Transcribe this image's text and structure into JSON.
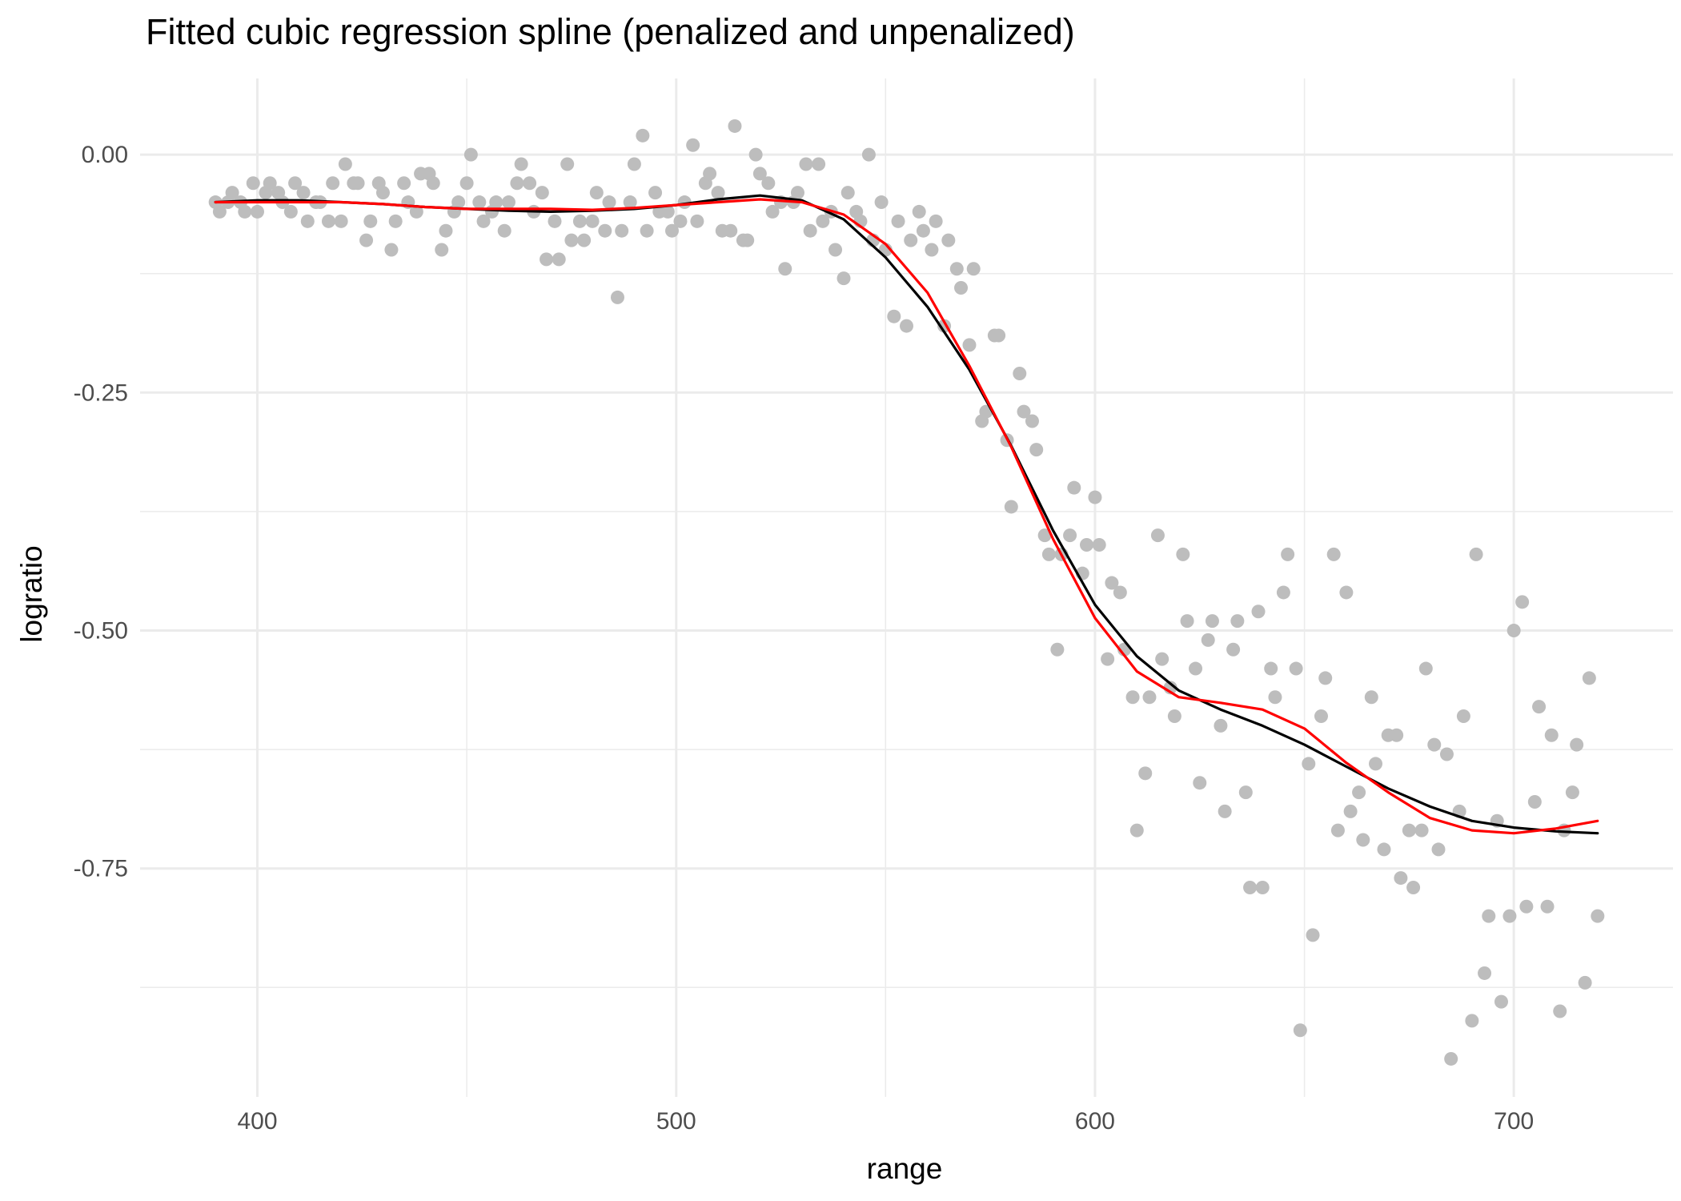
{
  "chart_data": {
    "type": "scatter",
    "title": "Fitted cubic regression spline (penalized and unpenalized)",
    "xlabel": "range",
    "ylabel": "logratio",
    "xlim": [
      372,
      738
    ],
    "ylim": [
      -0.99,
      0.08
    ],
    "x_ticks": [
      400,
      500,
      600,
      700
    ],
    "x_tick_labels": [
      "400",
      "500",
      "600",
      "700"
    ],
    "y_ticks": [
      0,
      -0.25,
      -0.5,
      -0.75
    ],
    "y_tick_labels": [
      "0.00",
      "-0.25",
      "-0.50",
      "-0.75"
    ],
    "x_minor": [
      350,
      450,
      550,
      650,
      750
    ],
    "y_minor": [
      0.125,
      -0.125,
      -0.375,
      -0.625,
      -0.875
    ],
    "grid": true,
    "colors": {
      "points": "#bdbdbd",
      "grid": "#ebebeb",
      "penalized": "#000000",
      "unpenalized": "#ff0000"
    },
    "series": [
      {
        "kind": "points",
        "x": [
          390,
          391,
          393,
          394,
          396,
          397,
          399,
          400,
          402,
          403,
          405,
          406,
          408,
          409,
          411,
          412,
          414,
          415,
          417,
          418,
          420,
          421,
          423,
          424,
          426,
          427,
          429,
          430,
          432,
          433,
          435,
          436,
          438,
          439,
          441,
          442,
          444,
          445,
          447,
          448,
          450,
          451,
          453,
          454,
          456,
          457,
          459,
          460,
          462,
          463,
          465,
          466,
          468,
          469,
          471,
          472,
          474,
          475,
          477,
          478,
          480,
          481,
          483,
          484,
          486,
          487,
          489,
          490,
          492,
          493,
          495,
          496,
          498,
          499,
          501,
          502,
          504,
          505,
          507,
          508,
          510,
          511,
          513,
          514,
          516,
          517,
          519,
          520,
          522,
          523,
          525,
          526,
          528,
          529,
          531,
          532,
          534,
          535,
          537,
          538,
          540,
          541,
          543,
          544,
          546,
          547,
          549,
          550,
          552,
          553,
          555,
          556,
          558,
          559,
          561,
          562,
          564,
          565,
          567,
          568,
          570,
          571,
          573,
          574,
          576,
          577,
          579,
          580,
          582,
          583,
          585,
          586,
          588,
          589,
          591,
          592,
          594,
          595,
          597,
          598,
          600,
          601,
          603,
          604,
          606,
          607,
          609,
          610,
          612,
          613,
          615,
          616,
          618,
          619,
          621,
          622,
          624,
          625,
          627,
          628,
          630,
          631,
          633,
          634,
          636,
          637,
          639,
          640,
          642,
          643,
          645,
          646,
          648,
          649,
          651,
          652,
          654,
          655,
          657,
          658,
          660,
          661,
          663,
          664,
          666,
          667,
          669,
          670,
          672,
          673,
          675,
          676,
          678,
          679,
          681,
          682,
          684,
          685,
          687,
          688,
          690,
          691,
          693,
          694,
          696,
          697,
          699,
          700,
          702,
          703,
          705,
          706,
          708,
          709,
          711,
          712,
          714,
          715,
          717,
          718,
          720
        ],
        "y": [
          -0.05,
          -0.06,
          -0.05,
          -0.04,
          -0.05,
          -0.06,
          -0.03,
          -0.06,
          -0.04,
          -0.03,
          -0.04,
          -0.05,
          -0.06,
          -0.03,
          -0.04,
          -0.07,
          -0.05,
          -0.05,
          -0.07,
          -0.03,
          -0.07,
          -0.01,
          -0.03,
          -0.03,
          -0.09,
          -0.07,
          -0.03,
          -0.04,
          -0.1,
          -0.07,
          -0.03,
          -0.05,
          -0.06,
          -0.02,
          -0.02,
          -0.03,
          -0.1,
          -0.08,
          -0.06,
          -0.05,
          -0.03,
          0,
          -0.05,
          -0.07,
          -0.06,
          -0.05,
          -0.08,
          -0.05,
          -0.03,
          -0.01,
          -0.03,
          -0.06,
          -0.04,
          -0.11,
          -0.07,
          -0.11,
          -0.01,
          -0.09,
          -0.07,
          -0.09,
          -0.07,
          -0.04,
          -0.08,
          -0.05,
          -0.15,
          -0.08,
          -0.05,
          -0.01,
          0.02,
          -0.08,
          -0.04,
          -0.06,
          -0.06,
          -0.08,
          -0.07,
          -0.05,
          0.01,
          -0.07,
          -0.03,
          -0.02,
          -0.04,
          -0.08,
          -0.08,
          0.03,
          -0.09,
          -0.09,
          0,
          -0.02,
          -0.03,
          -0.06,
          -0.05,
          -0.12,
          -0.05,
          -0.04,
          -0.01,
          -0.08,
          -0.01,
          -0.07,
          -0.06,
          -0.1,
          -0.13,
          -0.04,
          -0.06,
          -0.07,
          0,
          -0.09,
          -0.05,
          -0.1,
          -0.17,
          -0.07,
          -0.18,
          -0.09,
          -0.06,
          -0.08,
          -0.1,
          -0.07,
          -0.18,
          -0.09,
          -0.12,
          -0.14,
          -0.2,
          -0.12,
          -0.28,
          -0.27,
          -0.19,
          -0.19,
          -0.3,
          -0.37,
          -0.23,
          -0.27,
          -0.28,
          -0.31,
          -0.4,
          -0.42,
          -0.52,
          -0.42,
          -0.4,
          -0.35,
          -0.44,
          -0.41,
          -0.36,
          -0.41,
          -0.53,
          -0.45,
          -0.46,
          -0.52,
          -0.57,
          -0.71,
          -0.65,
          -0.57,
          -0.4,
          -0.53,
          -0.56,
          -0.59,
          -0.42,
          -0.49,
          -0.54,
          -0.66,
          -0.51,
          -0.49,
          -0.6,
          -0.69,
          -0.52,
          -0.49,
          -0.67,
          -0.77,
          -0.48,
          -0.77,
          -0.54,
          -0.57,
          -0.46,
          -0.42,
          -0.54,
          -0.92,
          -0.64,
          -0.82,
          -0.59,
          -0.55,
          -0.42,
          -0.71,
          -0.46,
          -0.69,
          -0.67,
          -0.72,
          -0.57,
          -0.64,
          -0.73,
          -0.61,
          -0.61,
          -0.76,
          -0.71,
          -0.77,
          -0.71,
          -0.54,
          -0.62,
          -0.73,
          -0.63,
          -0.95,
          -0.69,
          -0.59,
          -0.91,
          -0.42,
          -0.86,
          -0.8,
          -0.7,
          -0.89,
          -0.8,
          -0.5,
          -0.47,
          -0.79,
          -0.68,
          -0.58,
          -0.79,
          -0.61,
          -0.9,
          -0.71,
          -0.67,
          -0.62,
          -0.87,
          -0.55,
          -0.8
        ]
      },
      {
        "kind": "line",
        "x": [
          390,
          400,
          410,
          420,
          430,
          440,
          450,
          460,
          470,
          480,
          490,
          500,
          510,
          520,
          530,
          540,
          550,
          560,
          570,
          580,
          590,
          600,
          610,
          620,
          630,
          640,
          650,
          660,
          670,
          680,
          690,
          700,
          710,
          720
        ],
        "y": [
          -0.05,
          -0.048,
          -0.048,
          -0.05,
          -0.052,
          -0.055,
          -0.057,
          -0.059,
          -0.06,
          -0.059,
          -0.057,
          -0.053,
          -0.047,
          -0.043,
          -0.048,
          -0.068,
          -0.108,
          -0.16,
          -0.226,
          -0.306,
          -0.395,
          -0.473,
          -0.527,
          -0.563,
          -0.583,
          -0.6,
          -0.62,
          -0.643,
          -0.666,
          -0.685,
          -0.7,
          -0.707,
          -0.711,
          -0.713
        ]
      },
      {
        "kind": "line",
        "x": [
          390,
          400,
          410,
          420,
          430,
          440,
          450,
          460,
          470,
          480,
          490,
          500,
          510,
          520,
          530,
          540,
          550,
          560,
          570,
          580,
          590,
          600,
          610,
          620,
          630,
          640,
          650,
          660,
          670,
          680,
          690,
          700,
          710,
          720
        ],
        "y": [
          -0.05,
          -0.05,
          -0.05,
          -0.05,
          -0.052,
          -0.055,
          -0.057,
          -0.057,
          -0.057,
          -0.058,
          -0.056,
          -0.053,
          -0.05,
          -0.047,
          -0.05,
          -0.063,
          -0.094,
          -0.145,
          -0.222,
          -0.307,
          -0.404,
          -0.487,
          -0.543,
          -0.57,
          -0.576,
          -0.583,
          -0.603,
          -0.639,
          -0.67,
          -0.697,
          -0.71,
          -0.713,
          -0.708,
          -0.7
        ]
      }
    ]
  }
}
